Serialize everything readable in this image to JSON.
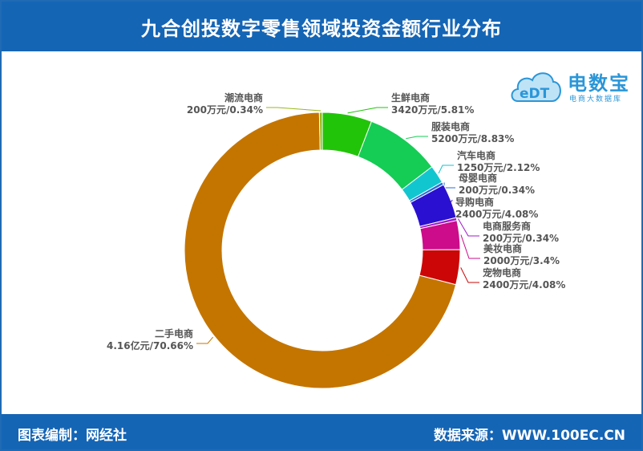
{
  "header": {
    "title": "九合创投数字零售领域投资金额行业分布"
  },
  "footer": {
    "credit": "图表编制：网经社",
    "source": "数据来源：WWW.100EC.CN"
  },
  "logo": {
    "brand": "电数宝",
    "brand_sub": "电商大数据库",
    "cloud_text": "eDT"
  },
  "chart_data": {
    "type": "pie",
    "donut": true,
    "title": "九合创投数字零售领域投资金额行业分布",
    "slices": [
      {
        "name": "生鲜电商",
        "label": "3420万元/5.81%",
        "value": 5.81,
        "color": "#22c40a"
      },
      {
        "name": "服装电商",
        "label": "5200万元/8.83%",
        "value": 8.83,
        "color": "#15cc55"
      },
      {
        "name": "汽车电商",
        "label": "1250万元/2.12%",
        "value": 2.12,
        "color": "#12c6d0"
      },
      {
        "name": "母婴电商",
        "label": "200万元/0.34%",
        "value": 0.34,
        "color": "#2b6bd8"
      },
      {
        "name": "导购电商",
        "label": "2400万元/4.08%",
        "value": 4.08,
        "color": "#2a10d0"
      },
      {
        "name": "电商服务商",
        "label": "200万元/0.34%",
        "value": 0.34,
        "color": "#a018c8"
      },
      {
        "name": "美妆电商",
        "label": "2000万元/3.4%",
        "value": 3.4,
        "color": "#cc0c8a"
      },
      {
        "name": "宠物电商",
        "label": "2400万元/4.08%",
        "value": 4.08,
        "color": "#cc0606"
      },
      {
        "name": "二手电商",
        "label": "4.16亿元/70.66%",
        "value": 70.66,
        "color": "#c47500"
      },
      {
        "name": "潮流电商",
        "label": "200万元/0.34%",
        "value": 0.34,
        "color": "#98b81a"
      }
    ]
  }
}
